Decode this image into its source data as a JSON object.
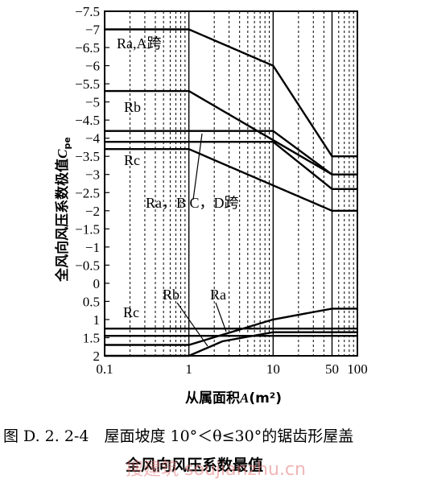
{
  "chart_data": {
    "type": "line",
    "x_scale": "log",
    "xlim": [
      0.1,
      100
    ],
    "x_ticks": [
      0.1,
      1,
      10,
      50,
      100
    ],
    "x_tick_labels": [
      "0.1",
      "1",
      "10",
      "50",
      "100"
    ],
    "ylim": [
      -7.5,
      2
    ],
    "y_inverted": true,
    "y_ticks": [
      -7.5,
      -7,
      -6.5,
      -6,
      -5.5,
      -5,
      -4.5,
      -4,
      -3.5,
      -3,
      -2.5,
      -2,
      -1.5,
      -1,
      -0.5,
      0,
      0.5,
      1,
      1.5,
      2
    ],
    "y_tick_labels": [
      "−7.5",
      "−7",
      "−6.5",
      "−6",
      "−5.5",
      "−5",
      "−4.5",
      "−4",
      "−3.5",
      "−3",
      "−2.5",
      "−2",
      "−1.5",
      "−1",
      "−0.5",
      "0",
      "0.5",
      "1",
      "1.5",
      "2"
    ],
    "xlabel_prefix": "从属面积",
    "xlabel_var": "A",
    "xlabel_unit": "(m²)",
    "ylabel_prefix": "全风向风压系数极值",
    "ylabel_var": "C",
    "ylabel_sub": "pe",
    "grid": "dashed verticals",
    "series": [
      {
        "name": "Ra,A跨",
        "x": [
          0.1,
          1,
          10,
          50,
          100
        ],
        "y": [
          -7.0,
          -7.0,
          -6.0,
          -3.5,
          -3.5
        ]
      },
      {
        "name": "Rb",
        "x": [
          0.1,
          1,
          50,
          100
        ],
        "y": [
          -5.3,
          -5.3,
          -3.0,
          -3.0
        ]
      },
      {
        "x": [
          0.1,
          1,
          10,
          50,
          100
        ],
        "y": [
          -4.2,
          -4.2,
          -4.2,
          -3.0,
          -3.0
        ]
      },
      {
        "x": [
          0.1,
          1,
          10,
          50,
          100
        ],
        "y": [
          -3.9,
          -3.9,
          -3.9,
          -2.6,
          -2.6
        ]
      },
      {
        "name": "Rc",
        "x": [
          0.1,
          1,
          50,
          100
        ],
        "y": [
          -3.7,
          -3.7,
          -2.0,
          -2.0
        ]
      },
      {
        "name": "Ra",
        "x": [
          0.1,
          1,
          10,
          50,
          100
        ],
        "y": [
          1.7,
          1.7,
          1.0,
          0.7,
          0.7
        ]
      },
      {
        "name": "Rb",
        "x": [
          0.1,
          1,
          2.5,
          10,
          100
        ],
        "y": [
          2.0,
          2.0,
          1.6,
          1.35,
          1.35
        ]
      },
      {
        "name": "Rc",
        "x": [
          0.1,
          100
        ],
        "y": [
          1.25,
          1.25
        ]
      },
      {
        "x": [
          0.1,
          100
        ],
        "y": [
          1.45,
          1.45
        ]
      }
    ],
    "annotations": [
      "Ra,A跨",
      "Rb",
      "Rc",
      "Ra，B C，D跨",
      "Rb",
      "Ra",
      "Rc"
    ]
  },
  "caption": {
    "line1": "图 D. 2. 2-4　屋面坡度 10°＜θ≤30°的锯齿形屋盖",
    "line2": "全风向风压系数最值"
  },
  "watermark": "搜建筑  soujianzhu.cn"
}
